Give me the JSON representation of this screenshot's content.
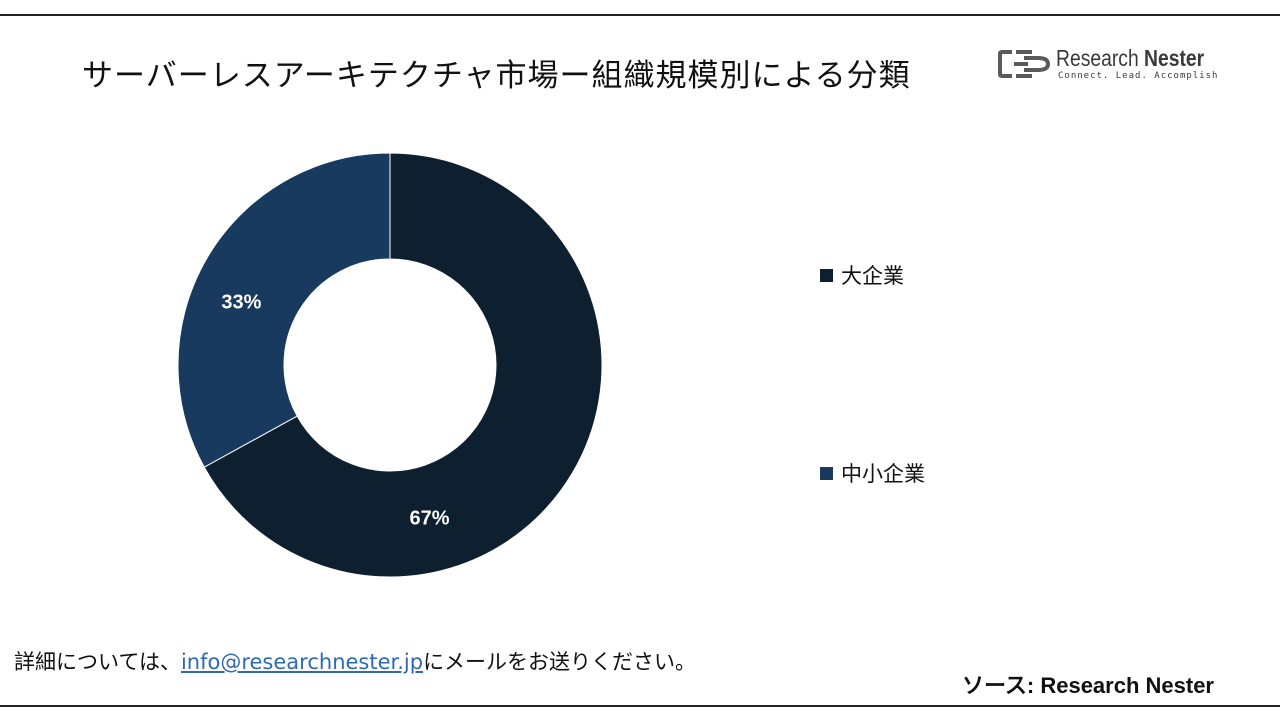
{
  "header": {
    "title": "サーバーレスアーキテクチャ市場ー組織規模別による分類"
  },
  "logo": {
    "name_part1": "Research ",
    "name_part2": "Nester",
    "tagline": "Connect. Lead. Accomplish"
  },
  "chart_data": {
    "type": "pie",
    "variant": "donut",
    "categories": [
      "大企業",
      "中小企業"
    ],
    "values": [
      67,
      33
    ],
    "data_labels": [
      "67%",
      "33%"
    ],
    "colors": [
      "#0e1f30",
      "#173a5e"
    ],
    "legend_position": "right"
  },
  "legend": {
    "items": [
      {
        "label": "大企業",
        "color": "#0e1f30"
      },
      {
        "label": "中小企業",
        "color": "#173a5e"
      }
    ]
  },
  "footer": {
    "note_prefix": "詳細については、",
    "email": "info@researchnester.jp",
    "note_suffix": "にメールをお送りください。",
    "source": "ソース: Research Nester"
  },
  "colors": {
    "link": "#2e6ab3",
    "text": "#111111"
  }
}
